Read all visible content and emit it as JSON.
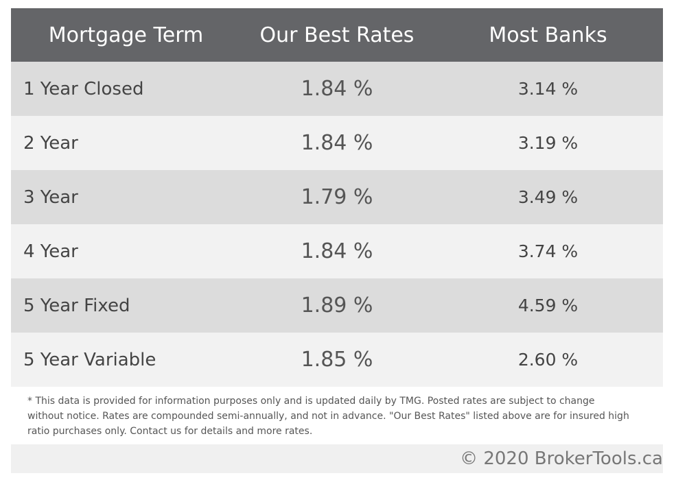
{
  "table": {
    "header": [
      "Mortgage Term",
      "Our Best Rates",
      "Most Banks"
    ],
    "rows": [
      [
        "1 Year Closed",
        "1.84 %",
        "3.14 %"
      ],
      [
        "2 Year",
        "1.84 %",
        "3.19 %"
      ],
      [
        "3 Year",
        "1.79 %",
        "3.49 %"
      ],
      [
        "4 Year",
        "1.84 %",
        "3.74 %"
      ],
      [
        "5 Year Fixed",
        "1.89 %",
        "4.59 %"
      ],
      [
        "5 Year Variable",
        "1.85 %",
        "2.60 %"
      ]
    ]
  },
  "footnote": "* This data is provided for information purposes only and is updated daily by TMG. Posted rates are subject to change without notice. Rates are compounded semi-annually, and not in advance. \"Our Best Rates\" listed above are for insured high ratio purchases only. Contact us for details and more rates.",
  "footer": "© 2020 BrokerTools.ca"
}
